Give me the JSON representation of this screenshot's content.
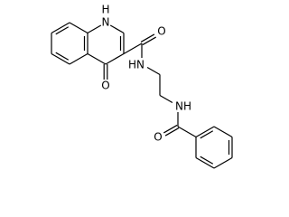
{
  "atoms": [
    {
      "label": "H"
    },
    {
      "label": "N"
    },
    {
      "label": "O"
    },
    {
      "label": "O"
    },
    {
      "label": "HN"
    },
    {
      "label": "NH"
    },
    {
      "label": "O"
    }
  ]
}
